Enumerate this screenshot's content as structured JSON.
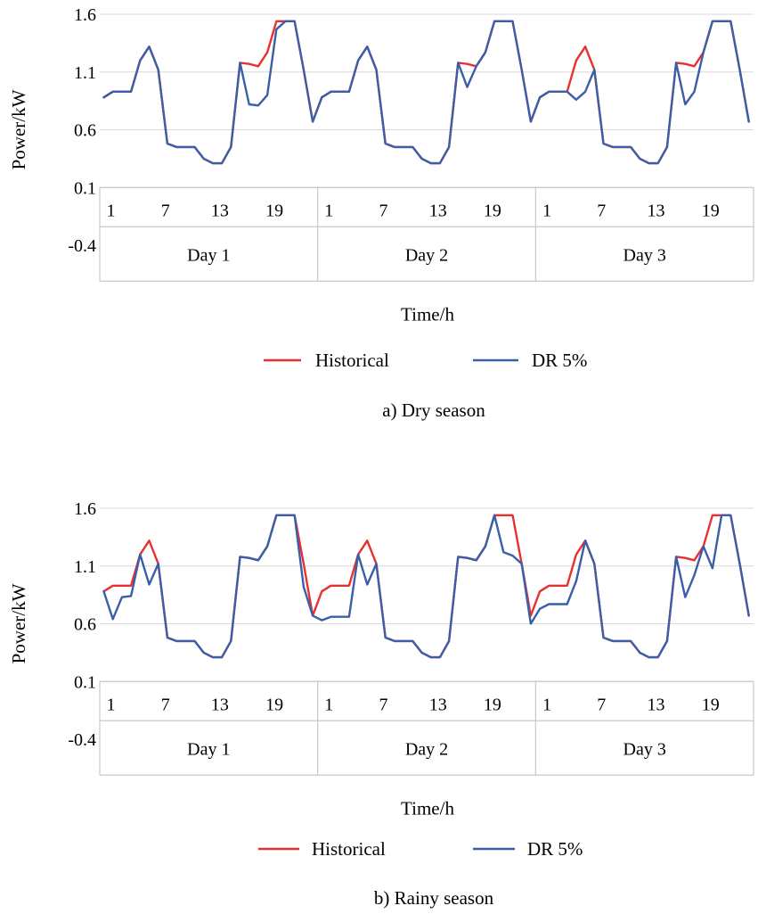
{
  "chart_data": [
    {
      "type": "line",
      "title": "",
      "caption": "a) Dry season",
      "xlabel": "Time/h",
      "ylabel": "Power/kW",
      "ylim": [
        -0.4,
        1.6
      ],
      "yticks": [
        1.6,
        1.1,
        0.6,
        0.1,
        -0.4
      ],
      "ytick_labels": [
        "1.6",
        "1.1",
        "0.6",
        "0.1",
        "-0.4"
      ],
      "x": [
        1,
        2,
        3,
        4,
        5,
        6,
        7,
        8,
        9,
        10,
        11,
        12,
        13,
        14,
        15,
        16,
        17,
        18,
        19,
        20,
        21,
        22,
        23,
        24,
        25,
        26,
        27,
        28,
        29,
        30,
        31,
        32,
        33,
        34,
        35,
        36,
        37,
        38,
        39,
        40,
        41,
        42,
        43,
        44,
        45,
        46,
        47,
        48,
        49,
        50,
        51,
        52,
        53,
        54,
        55,
        56,
        57,
        58,
        59,
        60,
        61,
        62,
        63,
        64,
        65,
        66,
        67,
        68,
        69,
        70,
        71,
        72
      ],
      "xtick_labels": [
        "1",
        "7",
        "13",
        "19"
      ],
      "groups": [
        "Day 1",
        "Day 2",
        "Day 3"
      ],
      "hours_per_group": 24,
      "grid": true,
      "legend_position": "bottom",
      "series": [
        {
          "name": "Historical",
          "color": "#e8312f",
          "values": [
            0.88,
            0.93,
            0.93,
            0.93,
            1.2,
            1.32,
            1.12,
            0.48,
            0.45,
            0.45,
            0.45,
            0.35,
            0.31,
            0.31,
            0.45,
            1.18,
            1.17,
            1.15,
            1.27,
            1.54,
            1.54,
            1.54,
            1.12,
            0.67,
            0.88,
            0.93,
            0.93,
            0.93,
            1.2,
            1.32,
            1.12,
            0.48,
            0.45,
            0.45,
            0.45,
            0.35,
            0.31,
            0.31,
            0.45,
            1.18,
            1.17,
            1.15,
            1.27,
            1.54,
            1.54,
            1.54,
            1.12,
            0.67,
            0.88,
            0.93,
            0.93,
            0.93,
            1.2,
            1.32,
            1.12,
            0.48,
            0.45,
            0.45,
            0.45,
            0.35,
            0.31,
            0.31,
            0.45,
            1.18,
            1.17,
            1.15,
            1.27,
            1.54,
            1.54,
            1.54,
            1.12,
            0.67
          ]
        },
        {
          "name": "DR 5%",
          "color": "#3a5ea8",
          "values": [
            0.88,
            0.93,
            0.93,
            0.93,
            1.2,
            1.32,
            1.12,
            0.48,
            0.45,
            0.45,
            0.45,
            0.35,
            0.31,
            0.31,
            0.45,
            1.18,
            0.82,
            0.81,
            0.9,
            1.47,
            1.54,
            1.54,
            1.12,
            0.67,
            0.88,
            0.93,
            0.93,
            0.93,
            1.2,
            1.32,
            1.12,
            0.48,
            0.45,
            0.45,
            0.45,
            0.35,
            0.31,
            0.31,
            0.45,
            1.18,
            0.97,
            1.15,
            1.27,
            1.54,
            1.54,
            1.54,
            1.12,
            0.67,
            0.88,
            0.93,
            0.93,
            0.93,
            0.86,
            0.93,
            1.12,
            0.48,
            0.45,
            0.45,
            0.45,
            0.35,
            0.31,
            0.31,
            0.45,
            1.18,
            0.82,
            0.93,
            1.27,
            1.54,
            1.54,
            1.54,
            1.12,
            0.67
          ]
        }
      ]
    },
    {
      "type": "line",
      "title": "",
      "caption": "b) Rainy season",
      "xlabel": "Time/h",
      "ylabel": "Power/kW",
      "ylim": [
        -0.4,
        1.6
      ],
      "yticks": [
        1.6,
        1.1,
        0.6,
        0.1,
        -0.4
      ],
      "ytick_labels": [
        "1.6",
        "1.1",
        "0.6",
        "0.1",
        "-0.4"
      ],
      "x": [
        1,
        2,
        3,
        4,
        5,
        6,
        7,
        8,
        9,
        10,
        11,
        12,
        13,
        14,
        15,
        16,
        17,
        18,
        19,
        20,
        21,
        22,
        23,
        24,
        25,
        26,
        27,
        28,
        29,
        30,
        31,
        32,
        33,
        34,
        35,
        36,
        37,
        38,
        39,
        40,
        41,
        42,
        43,
        44,
        45,
        46,
        47,
        48,
        49,
        50,
        51,
        52,
        53,
        54,
        55,
        56,
        57,
        58,
        59,
        60,
        61,
        62,
        63,
        64,
        65,
        66,
        67,
        68,
        69,
        70,
        71,
        72
      ],
      "xtick_labels": [
        "1",
        "7",
        "13",
        "19"
      ],
      "groups": [
        "Day 1",
        "Day 2",
        "Day 3"
      ],
      "hours_per_group": 24,
      "grid": true,
      "legend_position": "bottom",
      "series": [
        {
          "name": "Historical",
          "color": "#e8312f",
          "values": [
            0.88,
            0.93,
            0.93,
            0.93,
            1.2,
            1.32,
            1.12,
            0.48,
            0.45,
            0.45,
            0.45,
            0.35,
            0.31,
            0.31,
            0.45,
            1.18,
            1.17,
            1.15,
            1.27,
            1.54,
            1.54,
            1.54,
            1.12,
            0.67,
            0.88,
            0.93,
            0.93,
            0.93,
            1.2,
            1.32,
            1.12,
            0.48,
            0.45,
            0.45,
            0.45,
            0.35,
            0.31,
            0.31,
            0.45,
            1.18,
            1.17,
            1.15,
            1.27,
            1.54,
            1.54,
            1.54,
            1.12,
            0.67,
            0.88,
            0.93,
            0.93,
            0.93,
            1.2,
            1.32,
            1.12,
            0.48,
            0.45,
            0.45,
            0.45,
            0.35,
            0.31,
            0.31,
            0.45,
            1.18,
            1.17,
            1.15,
            1.27,
            1.54,
            1.54,
            1.54,
            1.12,
            0.67
          ]
        },
        {
          "name": "DR 5%",
          "color": "#3a5ea8",
          "values": [
            0.88,
            0.64,
            0.83,
            0.84,
            1.2,
            0.94,
            1.12,
            0.48,
            0.45,
            0.45,
            0.45,
            0.35,
            0.31,
            0.31,
            0.45,
            1.18,
            1.17,
            1.15,
            1.27,
            1.54,
            1.54,
            1.54,
            0.92,
            0.67,
            0.63,
            0.66,
            0.66,
            0.66,
            1.2,
            0.94,
            1.12,
            0.48,
            0.45,
            0.45,
            0.45,
            0.35,
            0.31,
            0.31,
            0.45,
            1.18,
            1.17,
            1.15,
            1.27,
            1.54,
            1.22,
            1.19,
            1.12,
            0.6,
            0.73,
            0.77,
            0.77,
            0.77,
            0.97,
            1.32,
            1.12,
            0.48,
            0.45,
            0.45,
            0.45,
            0.35,
            0.31,
            0.31,
            0.45,
            1.18,
            0.83,
            1.02,
            1.27,
            1.08,
            1.54,
            1.54,
            1.12,
            0.67
          ]
        }
      ]
    }
  ]
}
